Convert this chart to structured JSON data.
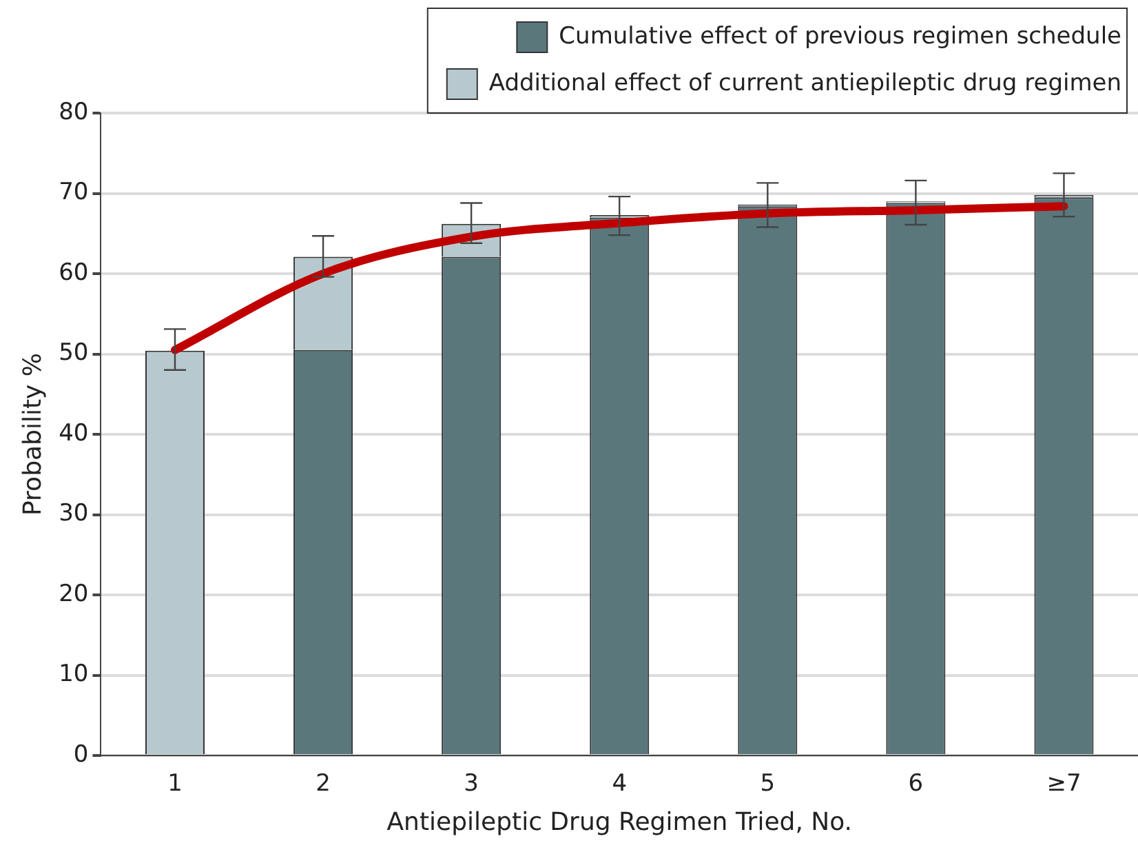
{
  "chart_data": {
    "type": "bar",
    "stacked": true,
    "xlabel": "Antiepileptic Drug Regimen Tried, No.",
    "ylabel": "Probability %",
    "categories": [
      "1",
      "2",
      "3",
      "4",
      "5",
      "6",
      "≥7"
    ],
    "series": [
      {
        "name": "Cumulative effect of previous regimen schedule",
        "color": "#5a777c",
        "values": [
          0,
          50.5,
          62.1,
          67.0,
          68.4,
          68.8,
          69.5
        ]
      },
      {
        "name": "Additional effect of current antiepileptic drug regimen",
        "color": "#b7c9cf",
        "values": [
          50.4,
          11.6,
          4.1,
          0.3,
          0.2,
          0.2,
          0.3
        ],
        "errors": [
          [
            48.0,
            53.1
          ],
          [
            59.6,
            64.7
          ],
          [
            63.8,
            68.8
          ],
          [
            64.8,
            69.6
          ],
          [
            65.8,
            71.3
          ],
          [
            66.1,
            71.6
          ],
          [
            67.1,
            72.5
          ]
        ]
      },
      {
        "type": "line",
        "color": "#c00000",
        "values": [
          50.5,
          60.0,
          64.6,
          66.3,
          67.5,
          67.9,
          68.4
        ],
        "marker": "none"
      }
    ],
    "ylim": [
      0,
      80
    ],
    "yticks": [
      0,
      10,
      20,
      30,
      40,
      50,
      60,
      70,
      80
    ],
    "grid": "y",
    "legend": "top right"
  }
}
